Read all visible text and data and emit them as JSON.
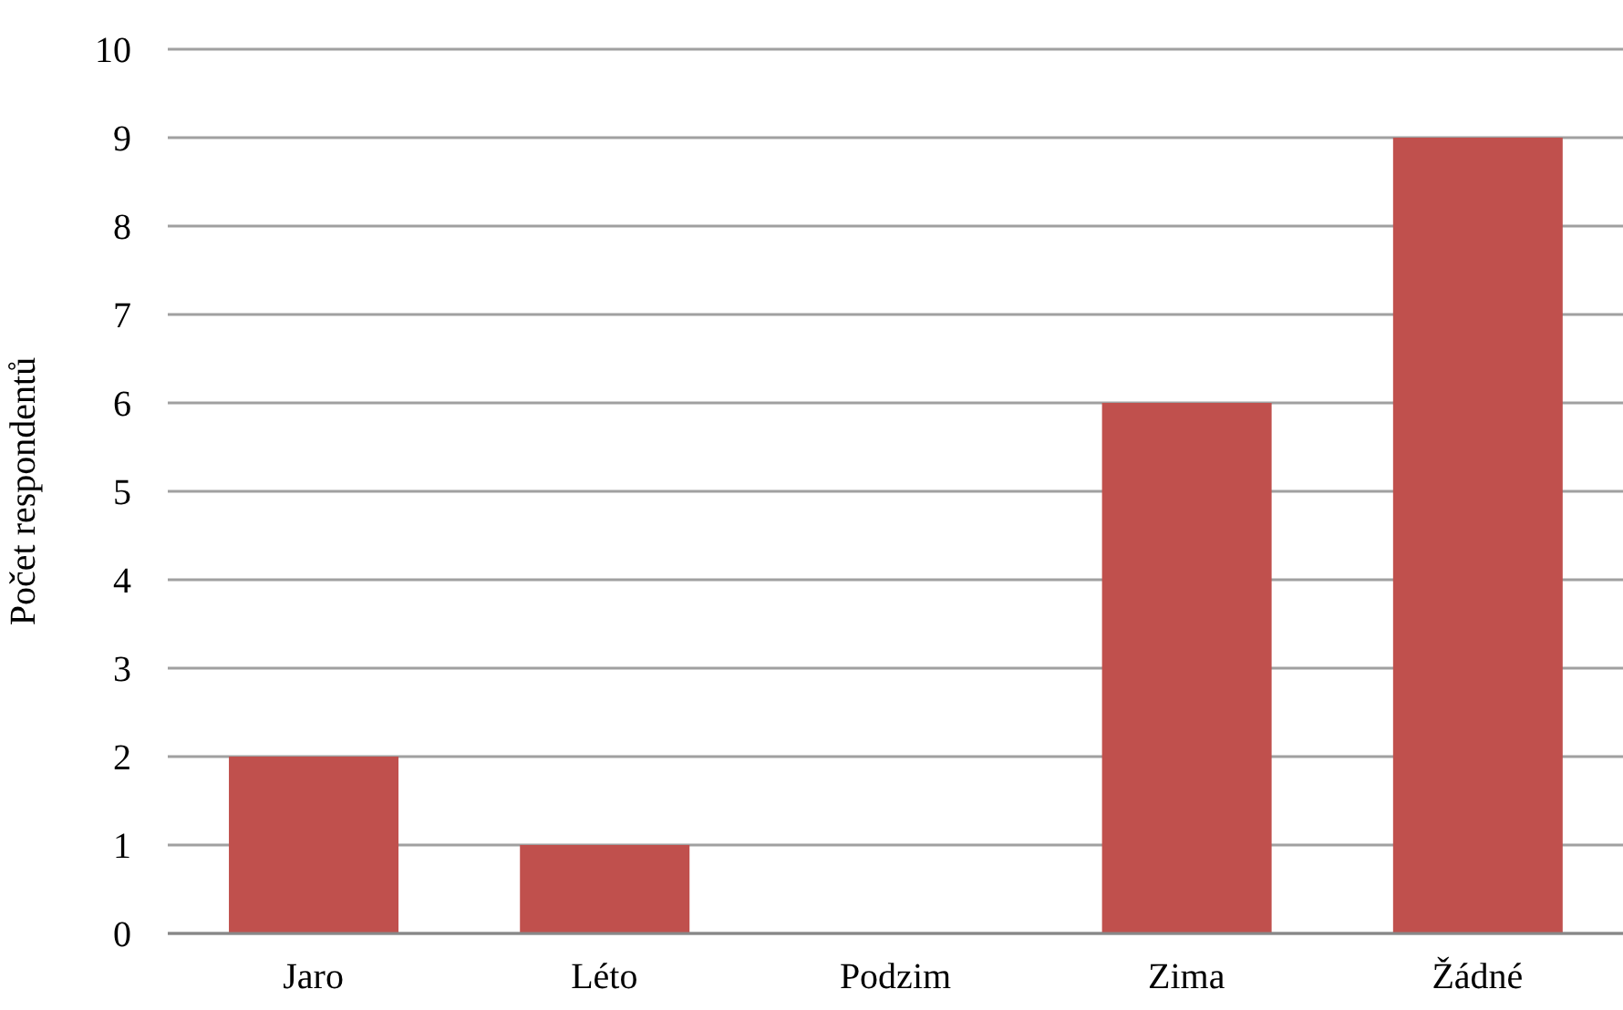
{
  "chart_data": {
    "type": "bar",
    "ylabel": "Počet respondentů",
    "categories": [
      "Jaro",
      "Léto",
      "Podzim",
      "Zima",
      "Žádné"
    ],
    "values": [
      2,
      1,
      0,
      6,
      9
    ],
    "color": "#c0504d",
    "ylim": [
      0,
      10
    ],
    "yticks": [
      0,
      1,
      2,
      3,
      4,
      5,
      6,
      7,
      8,
      9,
      10
    ],
    "grid": "y"
  }
}
